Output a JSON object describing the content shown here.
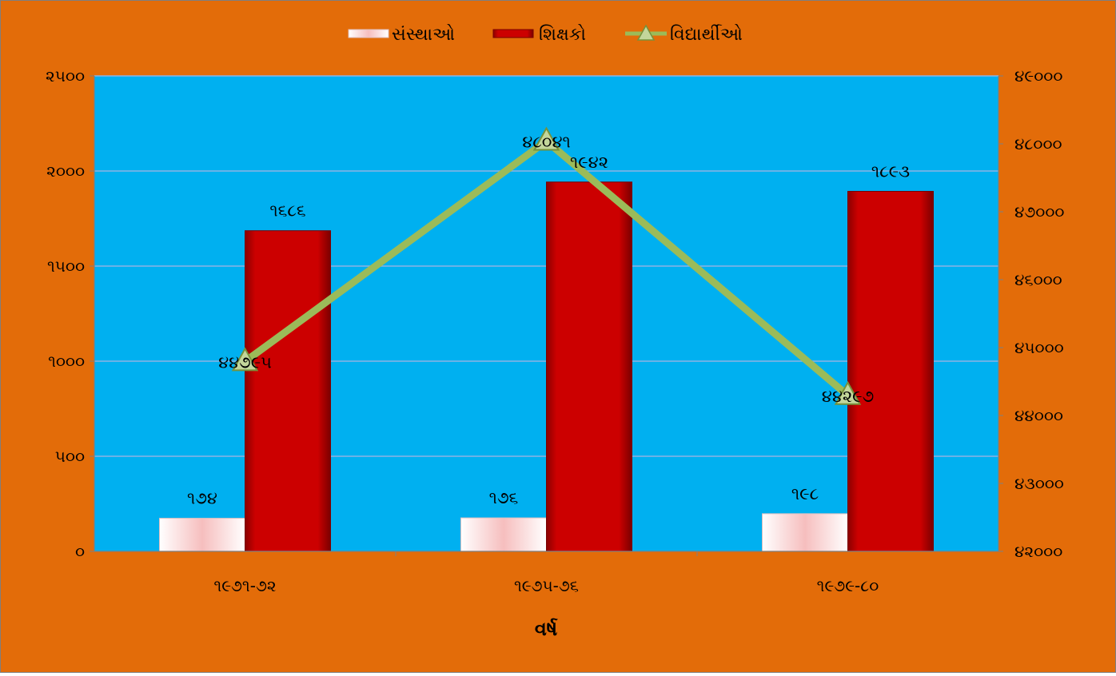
{
  "chart_data": {
    "type": "bar",
    "categories": [
      "૧૯૭૧-૭૨",
      "૧૯૭૫-૭૬",
      "૧૯૭૯-૮૦"
    ],
    "series": [
      {
        "name": "સંસ્થાઓ",
        "axis": "left",
        "kind": "bar",
        "values": [
          174,
          176,
          198
        ],
        "labels": [
          "૧૭૪",
          "૧૭૬",
          "૧૯૮"
        ],
        "color": "#F8E0E0"
      },
      {
        "name": "શિક્ષકો",
        "axis": "left",
        "kind": "bar",
        "values": [
          1686,
          1942,
          1893
        ],
        "labels": [
          "૧૬૮૬",
          "૧૯૪૨",
          "૧૮૯૩"
        ],
        "color": "#CC0000"
      },
      {
        "name": "વિદ્યાર્થીઓ",
        "axis": "right",
        "kind": "line",
        "values": [
          44795,
          48041,
          44297
        ],
        "labels": [
          "૪૪૭૯૫",
          "૪૮૦૪૧",
          "૪૪૨૯૭"
        ],
        "color": "#9BBB59"
      }
    ],
    "xlabel": "વર્ષ",
    "ylim": [
      0,
      2500
    ],
    "y2lim": [
      42000,
      49000
    ],
    "yticks": [
      {
        "value": 0,
        "label": "૦"
      },
      {
        "value": 500,
        "label": "૫૦૦"
      },
      {
        "value": 1000,
        "label": "૧૦૦૦"
      },
      {
        "value": 1500,
        "label": "૧૫૦૦"
      },
      {
        "value": 2000,
        "label": "૨૦૦૦"
      },
      {
        "value": 2500,
        "label": "૨૫૦૦"
      }
    ],
    "y2ticks": [
      {
        "value": 42000,
        "label": "૪૨૦૦૦"
      },
      {
        "value": 43000,
        "label": "૪૩૦૦૦"
      },
      {
        "value": 44000,
        "label": "૪૪૦૦૦"
      },
      {
        "value": 45000,
        "label": "૪૫૦૦૦"
      },
      {
        "value": 46000,
        "label": "૪૬૦૦૦"
      },
      {
        "value": 47000,
        "label": "૪૭૦૦૦"
      },
      {
        "value": 48000,
        "label": "૪૮૦૦૦"
      },
      {
        "value": 49000,
        "label": "૪૯૦૦૦"
      }
    ],
    "grid": true,
    "legend": "top",
    "colors": {
      "outer_background": "#E36C09",
      "plot_background": "#00B0F0",
      "gridline": "#8DB3E2"
    }
  }
}
